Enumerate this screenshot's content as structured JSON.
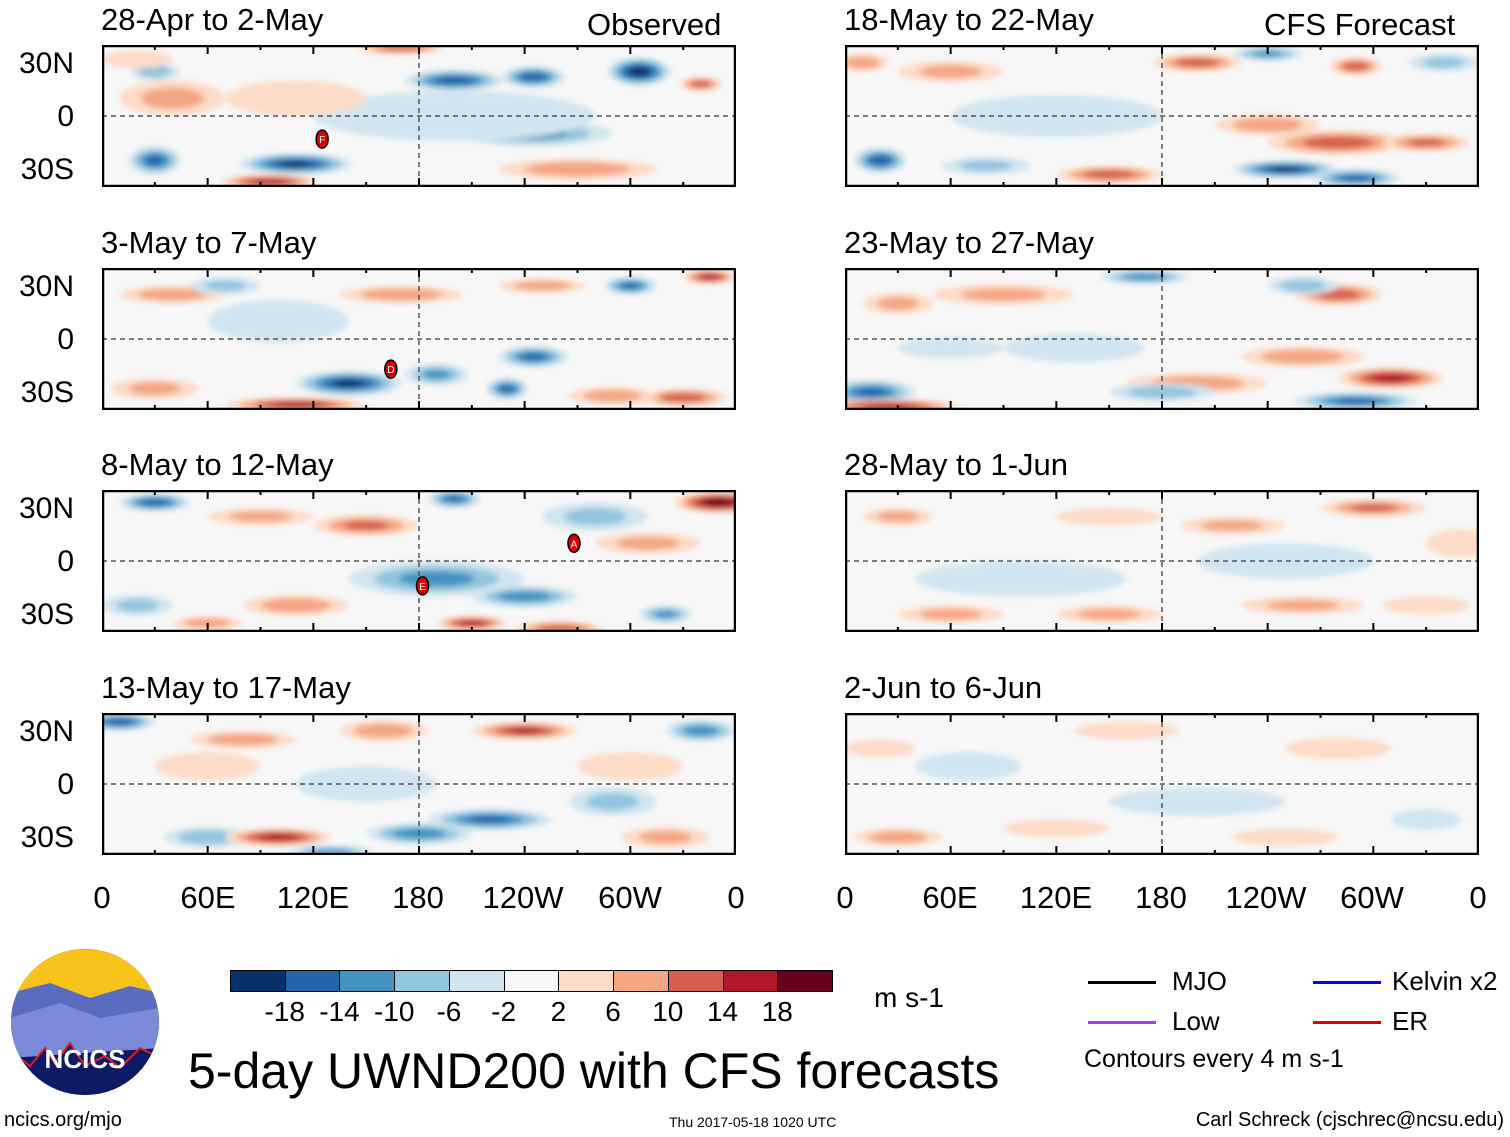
{
  "header": {
    "left_label": "Observed",
    "right_label": "CFS Forecast"
  },
  "panels": [
    {
      "title": "28-Apr to 2-May",
      "column": "observed"
    },
    {
      "title": "3-May to 7-May",
      "column": "observed"
    },
    {
      "title": "8-May to 12-May",
      "column": "observed"
    },
    {
      "title": "13-May to 17-May",
      "column": "observed"
    },
    {
      "title": "18-May to 22-May",
      "column": "forecast"
    },
    {
      "title": "23-May to 27-May",
      "column": "forecast"
    },
    {
      "title": "28-May to 1-Jun",
      "column": "forecast"
    },
    {
      "title": "2-Jun to 6-Jun",
      "column": "forecast"
    }
  ],
  "axes": {
    "lat_labels": [
      "30N",
      "0",
      "30S"
    ],
    "lon_labels": [
      "0",
      "60E",
      "120E",
      "180",
      "120W",
      "60W",
      "0"
    ]
  },
  "colorbar": {
    "colors": [
      "#08306b",
      "#2166ac",
      "#4393c3",
      "#92c5de",
      "#d1e5f0",
      "#f7f7f7",
      "#fddbc7",
      "#f4a582",
      "#d6604d",
      "#b2182b",
      "#67001f"
    ],
    "labels": [
      "-18",
      "-14",
      "-10",
      "-6",
      "-2",
      "2",
      "6",
      "10",
      "14",
      "18"
    ],
    "units": "m s-1"
  },
  "legend": {
    "items": [
      {
        "label": "MJO",
        "color": "#000000"
      },
      {
        "label": "Kelvin x2",
        "color": "#0000ff"
      },
      {
        "label": "Low",
        "color": "#a040e0"
      },
      {
        "label": "ER",
        "color": "#e00000"
      }
    ],
    "contours_note": "Contours every 4 m s-1"
  },
  "footer": {
    "title": "5-day UWND200 with CFS forecasts",
    "logo_text": "NCICS",
    "url": "ncics.org/mjo",
    "timestamp": "Thu 2017-05-18 1020 UTC",
    "credit": "Carl Schreck (cjschrec@ncsu.edu)"
  },
  "chart_data": {
    "type": "heatmap",
    "variable": "200-hPa zonal wind anomaly",
    "units": "m s-1",
    "lon_range": [
      0,
      360
    ],
    "lat_range": [
      -40,
      40
    ],
    "storms": [
      {
        "panel": 0,
        "label": "F",
        "lon": 125,
        "lat": -13
      },
      {
        "panel": 1,
        "label": "D",
        "lon": 164,
        "lat": -17
      },
      {
        "panel": 2,
        "label": "A",
        "lon": 268,
        "lat": 10
      },
      {
        "panel": 2,
        "label": "E",
        "lon": 182,
        "lat": -14
      }
    ],
    "anomaly_blobs_lon_lat_rlon_rlat_value": [
      [
        [
          30,
          -25,
          15,
          8,
          -16
        ],
        [
          110,
          -27,
          32,
          6,
          -20
        ],
        [
          95,
          -37,
          28,
          4,
          18
        ],
        [
          200,
          20,
          28,
          6,
          -18
        ],
        [
          245,
          22,
          18,
          6,
          -18
        ],
        [
          305,
          25,
          18,
          8,
          -22
        ],
        [
          340,
          18,
          12,
          4,
          14
        ],
        [
          40,
          10,
          30,
          10,
          8
        ],
        [
          245,
          -10,
          45,
          7,
          -12
        ],
        [
          200,
          0,
          80,
          14,
          -4
        ],
        [
          270,
          -30,
          45,
          6,
          10
        ],
        [
          170,
          38,
          25,
          3,
          14
        ],
        [
          30,
          25,
          14,
          5,
          -10
        ],
        [
          110,
          10,
          40,
          10,
          4
        ],
        [
          20,
          32,
          20,
          5,
          6
        ]
      ],
      [
        [
          140,
          -25,
          30,
          7,
          -20
        ],
        [
          110,
          -37,
          40,
          4,
          18
        ],
        [
          330,
          -33,
          25,
          5,
          14
        ],
        [
          345,
          35,
          15,
          4,
          18
        ],
        [
          300,
          30,
          15,
          5,
          -16
        ],
        [
          245,
          -10,
          20,
          6,
          -16
        ],
        [
          230,
          -28,
          12,
          6,
          -16
        ],
        [
          190,
          -20,
          18,
          6,
          -12
        ],
        [
          170,
          25,
          35,
          5,
          10
        ],
        [
          250,
          30,
          25,
          4,
          10
        ],
        [
          40,
          25,
          30,
          5,
          10
        ],
        [
          30,
          -28,
          25,
          6,
          8
        ],
        [
          290,
          -32,
          25,
          5,
          10
        ],
        [
          100,
          10,
          40,
          12,
          -4
        ],
        [
          70,
          30,
          20,
          5,
          -8
        ]
      ],
      [
        [
          30,
          33,
          20,
          5,
          -18
        ],
        [
          350,
          33,
          25,
          6,
          22
        ],
        [
          190,
          -10,
          50,
          10,
          -12
        ],
        [
          240,
          -20,
          30,
          6,
          -14
        ],
        [
          200,
          35,
          15,
          5,
          -16
        ],
        [
          260,
          -38,
          25,
          4,
          14
        ],
        [
          210,
          -35,
          20,
          4,
          18
        ],
        [
          320,
          -30,
          15,
          5,
          -12
        ],
        [
          110,
          -25,
          30,
          6,
          10
        ],
        [
          20,
          -25,
          20,
          6,
          -8
        ],
        [
          150,
          20,
          30,
          6,
          12
        ],
        [
          90,
          25,
          30,
          5,
          8
        ],
        [
          280,
          25,
          30,
          8,
          -8
        ],
        [
          310,
          10,
          30,
          6,
          8
        ],
        [
          60,
          -35,
          20,
          4,
          10
        ]
      ],
      [
        [
          10,
          35,
          20,
          5,
          -18
        ],
        [
          60,
          -30,
          25,
          6,
          -10
        ],
        [
          100,
          -30,
          30,
          5,
          18
        ],
        [
          180,
          -28,
          30,
          6,
          -14
        ],
        [
          220,
          -20,
          35,
          6,
          -16
        ],
        [
          240,
          30,
          30,
          5,
          16
        ],
        [
          160,
          30,
          25,
          6,
          10
        ],
        [
          80,
          25,
          30,
          5,
          10
        ],
        [
          340,
          30,
          20,
          6,
          -14
        ],
        [
          150,
          0,
          40,
          10,
          -6
        ],
        [
          290,
          -10,
          25,
          8,
          -8
        ],
        [
          60,
          10,
          30,
          8,
          6
        ],
        [
          130,
          -38,
          25,
          3,
          -14
        ],
        [
          300,
          10,
          30,
          8,
          6
        ],
        [
          320,
          -30,
          25,
          6,
          8
        ]
      ],
      [
        [
          20,
          -25,
          15,
          7,
          -18
        ],
        [
          80,
          -28,
          25,
          5,
          -8
        ],
        [
          250,
          -30,
          30,
          5,
          -20
        ],
        [
          290,
          -35,
          25,
          5,
          -16
        ],
        [
          280,
          -15,
          40,
          7,
          14
        ],
        [
          330,
          -15,
          25,
          5,
          12
        ],
        [
          150,
          -33,
          30,
          5,
          14
        ],
        [
          240,
          -5,
          30,
          6,
          10
        ],
        [
          200,
          30,
          25,
          5,
          14
        ],
        [
          290,
          28,
          15,
          5,
          14
        ],
        [
          240,
          35,
          20,
          4,
          -12
        ],
        [
          60,
          25,
          30,
          6,
          8
        ],
        [
          120,
          0,
          60,
          12,
          -4
        ],
        [
          10,
          30,
          15,
          5,
          10
        ],
        [
          340,
          30,
          20,
          5,
          -8
        ]
      ],
      [
        [
          15,
          -30,
          25,
          7,
          -16
        ],
        [
          25,
          -38,
          40,
          4,
          18
        ],
        [
          310,
          -22,
          30,
          6,
          18
        ],
        [
          290,
          -35,
          35,
          5,
          -16
        ],
        [
          260,
          -10,
          35,
          6,
          10
        ],
        [
          200,
          -25,
          40,
          6,
          10
        ],
        [
          180,
          -30,
          30,
          5,
          -10
        ],
        [
          280,
          25,
          25,
          6,
          14
        ],
        [
          170,
          35,
          25,
          4,
          -14
        ],
        [
          260,
          30,
          20,
          5,
          -10
        ],
        [
          90,
          25,
          40,
          6,
          8
        ],
        [
          130,
          -5,
          40,
          8,
          -6
        ],
        [
          60,
          -5,
          30,
          6,
          -6
        ],
        [
          30,
          20,
          20,
          6,
          8
        ]
      ],
      [
        [
          60,
          -30,
          30,
          5,
          8
        ],
        [
          150,
          -30,
          30,
          5,
          8
        ],
        [
          260,
          -25,
          35,
          5,
          8
        ],
        [
          300,
          30,
          30,
          5,
          12
        ],
        [
          220,
          20,
          30,
          5,
          8
        ],
        [
          30,
          25,
          20,
          5,
          8
        ],
        [
          150,
          25,
          30,
          5,
          6
        ],
        [
          100,
          -10,
          60,
          10,
          -4
        ],
        [
          250,
          0,
          50,
          10,
          -4
        ],
        [
          350,
          10,
          20,
          8,
          6
        ],
        [
          330,
          -25,
          25,
          5,
          6
        ]
      ],
      [
        [
          30,
          -30,
          25,
          5,
          10
        ],
        [
          120,
          -25,
          30,
          5,
          6
        ],
        [
          280,
          20,
          30,
          6,
          6
        ],
        [
          330,
          -20,
          20,
          6,
          -6
        ],
        [
          200,
          -10,
          50,
          8,
          -4
        ],
        [
          70,
          10,
          30,
          8,
          -4
        ],
        [
          160,
          30,
          30,
          5,
          6
        ],
        [
          250,
          -30,
          30,
          5,
          6
        ],
        [
          20,
          20,
          20,
          5,
          6
        ]
      ]
    ]
  }
}
